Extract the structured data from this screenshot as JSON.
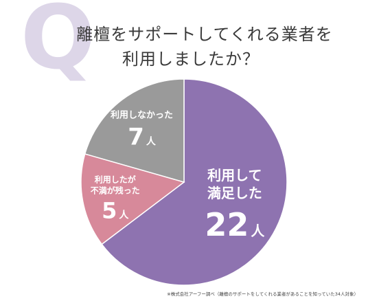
{
  "q_mark": "Q",
  "title": {
    "line1": "離檀をサポートしてくれる業者を",
    "line2": "利用しましたか？"
  },
  "chart_data": {
    "type": "pie",
    "unit": "人",
    "slices": [
      {
        "label_lines": [
          "利用して",
          "満足した"
        ],
        "value": 22,
        "value_text": "22",
        "color": "#8e73b0"
      },
      {
        "label_lines": [
          "利用したが",
          "不満が残った"
        ],
        "value": 5,
        "value_text": "5",
        "color": "#d7899a"
      },
      {
        "label_lines": [
          "利用しなかった"
        ],
        "value": 7,
        "value_text": "7",
        "color": "#9a9a9a"
      }
    ]
  },
  "source_note": "※株式会社アーフー調べ（離檀のサポートをしてくれる業者があることを知っていた34人対象）"
}
